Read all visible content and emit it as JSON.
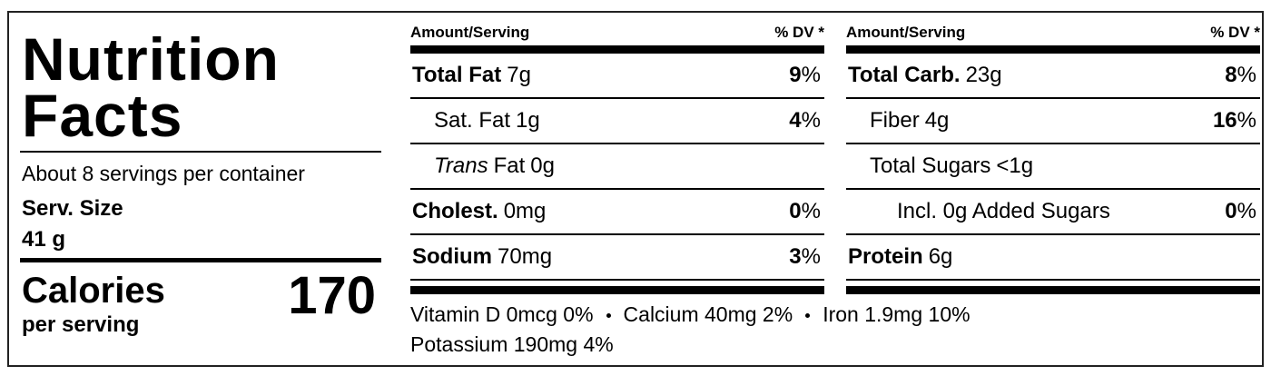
{
  "title_line1": "Nutrition",
  "title_line2": "Facts",
  "servings": "About 8 servings per container",
  "serving_size_label": "Serv. Size",
  "serving_size": "41 g",
  "calories_label": "Calories",
  "calories_sub": "per serving",
  "calories": 170,
  "columns": [
    {
      "header_amount": "Amount/Serving",
      "header_dv": "% DV *",
      "rows": [
        {
          "name": "Total Fat",
          "amount": "7g",
          "dv": "9%",
          "bold": true,
          "indent": 0
        },
        {
          "name": "Sat. Fat",
          "amount": "1g",
          "dv": "4%",
          "bold": false,
          "indent": 1
        },
        {
          "name_italic": "Trans",
          "name": "Fat",
          "amount": "0g",
          "bold": false,
          "indent": 1
        },
        {
          "name": "Cholest.",
          "amount": "0mg",
          "dv": "0%",
          "bold": true,
          "indent": 0
        },
        {
          "name": "Sodium",
          "amount": "70mg",
          "dv": "3%",
          "bold": true,
          "indent": 0
        }
      ]
    },
    {
      "header_amount": "Amount/Serving",
      "header_dv": "% DV *",
      "rows": [
        {
          "name": "Total Carb.",
          "amount": "23g",
          "dv": "8%",
          "bold": true,
          "indent": 0
        },
        {
          "name": "Fiber",
          "amount": "4g",
          "dv": "16%",
          "bold": false,
          "indent": 1
        },
        {
          "name": "Total Sugars",
          "amount": "<1g",
          "bold": false,
          "indent": 1
        },
        {
          "name": "Incl. 0g Added Sugars",
          "dv": "0%",
          "bold": false,
          "indent": 2
        },
        {
          "name": "Protein",
          "amount": "6g",
          "bold": true,
          "indent": 0
        }
      ]
    }
  ],
  "vitamin_lines": [
    [
      "Vitamin D 0mcg 0%",
      "Calcium 40mg 2%",
      "Iron 1.9mg 10%"
    ],
    [
      "Potassium 190mg 4%"
    ]
  ]
}
